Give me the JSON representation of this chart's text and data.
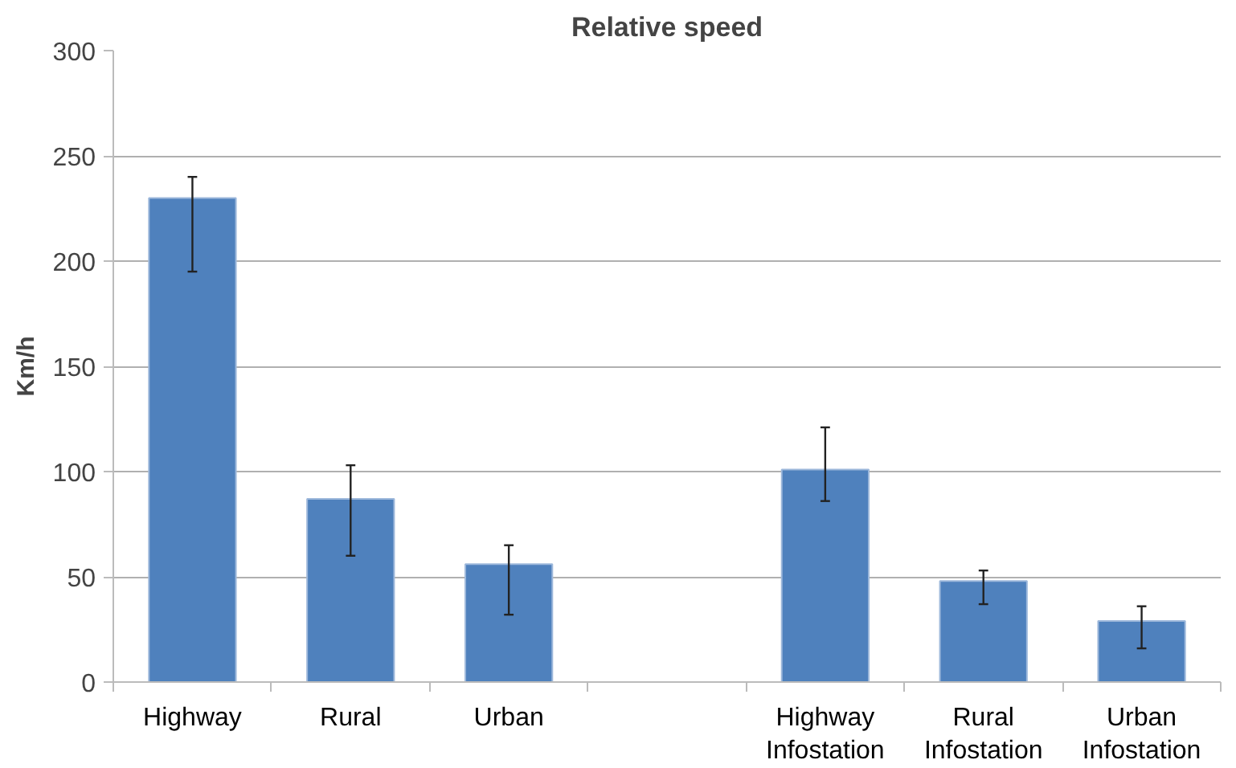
{
  "chart_data": {
    "type": "bar",
    "title": "Relative speed",
    "ylabel": "Km/h",
    "categories": [
      "Highway",
      "Rural",
      "Urban",
      null,
      "Highway\nInfostation",
      "Rural\nInfostation",
      "Urban\nInfostation"
    ],
    "values": [
      230,
      87,
      56,
      null,
      101,
      48,
      29
    ],
    "errors": [
      [
        195,
        240
      ],
      [
        60,
        103
      ],
      [
        32,
        65
      ],
      null,
      [
        86,
        121
      ],
      [
        37,
        53
      ],
      [
        16,
        36
      ]
    ],
    "color": "#4f81bd",
    "ylim": [
      0,
      300
    ],
    "yticks": [
      0,
      50,
      100,
      150,
      200,
      250,
      300
    ],
    "grid": "y"
  }
}
